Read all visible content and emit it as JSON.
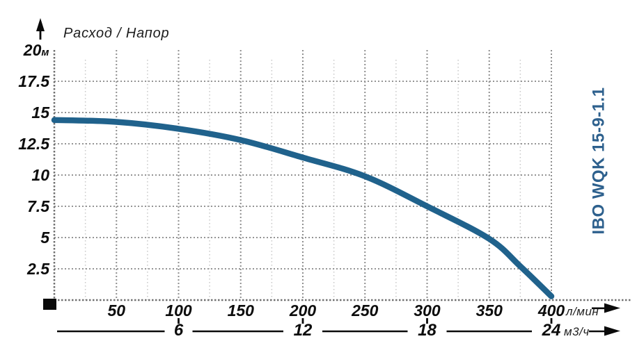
{
  "labels": {
    "title": "Расход / Напор",
    "product": "IBO WQK 15-9-1.1",
    "y_unit": "м",
    "flow_unit_primary": "л/мин",
    "flow_unit_secondary": "м3/ч"
  },
  "colors": {
    "curve": "#20628c",
    "product_text": "#2d608d",
    "text": "#0d0d0d",
    "grid_major": "#8f8f8f",
    "grid_minor": "#c7c7c7",
    "grid_horizontal": "#949494",
    "axis_dotted": "#707070",
    "black": "#0a0a0a"
  },
  "chart_data": {
    "type": "line",
    "title": "Расход / Напор",
    "series": [
      {
        "name": "IBO WQK 15-9-1.1",
        "color": "#20628c",
        "points": [
          [
            0,
            14.4
          ],
          [
            50,
            14.25
          ],
          [
            100,
            13.7
          ],
          [
            150,
            12.8
          ],
          [
            200,
            11.4
          ],
          [
            250,
            9.9
          ],
          [
            300,
            7.5
          ],
          [
            350,
            4.9
          ],
          [
            375,
            2.7
          ],
          [
            400,
            0.3
          ]
        ]
      }
    ],
    "x_axis_primary": {
      "label": "л/мин",
      "ticks": [
        50,
        100,
        150,
        200,
        250,
        300,
        350,
        400
      ],
      "range": [
        0,
        400
      ]
    },
    "x_axis_secondary": {
      "label": "м3/ч",
      "ticks": [
        6,
        12,
        18,
        24
      ],
      "range": [
        0,
        24
      ]
    },
    "y_axis": {
      "label": "м",
      "ticks": [
        20,
        17.5,
        15,
        12.5,
        10,
        7.5,
        5,
        2.5
      ],
      "range": [
        0,
        20
      ]
    },
    "grid": {
      "x_major_step": 50,
      "x_minor_step": 25,
      "y_step": 2.5,
      "grid_on": true
    },
    "legend": "none"
  }
}
